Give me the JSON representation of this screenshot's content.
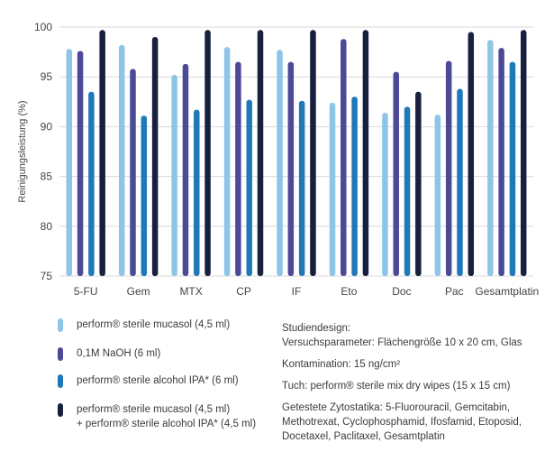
{
  "chart_data": {
    "type": "bar",
    "title": "",
    "xlabel": "",
    "ylabel": "Reinigungsleistung (%)",
    "ylim": [
      75,
      100
    ],
    "yticks": [
      75,
      80,
      85,
      90,
      95,
      100
    ],
    "grid": true,
    "categories": [
      "5-FU",
      "Gem",
      "MTX",
      "CP",
      "IF",
      "Eto",
      "Doc",
      "Pac",
      "Gesamtplatin"
    ],
    "series": [
      {
        "name": "perform® sterile mucasol (4,5 ml)",
        "color": "#8ec5e6",
        "values": [
          97.8,
          98.2,
          95.2,
          98.0,
          97.7,
          92.4,
          91.4,
          91.2,
          98.7
        ]
      },
      {
        "name": "0,1M NaOH (6 ml)",
        "color": "#4c4a97",
        "values": [
          97.6,
          95.8,
          96.3,
          96.5,
          96.5,
          98.8,
          95.5,
          96.6,
          97.9
        ]
      },
      {
        "name": "perform® sterile alcohol IPA* (6 ml)",
        "color": "#1f79b8",
        "values": [
          93.5,
          91.1,
          91.7,
          92.7,
          92.6,
          93.0,
          92.0,
          93.8,
          96.5
        ]
      },
      {
        "name": "perform® sterile mucasol (4,5 ml) + perform® sterile alcohol IPA* (4,5 ml)",
        "color": "#17203f",
        "values": [
          99.7,
          99.0,
          99.7,
          99.7,
          99.7,
          99.7,
          93.5,
          99.5,
          99.7
        ]
      }
    ]
  },
  "legend": {
    "items": [
      {
        "lines": [
          "perform® sterile mucasol (4,5 ml)"
        ],
        "color": "#8ec5e6"
      },
      {
        "lines": [
          "0,1M NaOH (6 ml)"
        ],
        "color": "#4c4a97"
      },
      {
        "lines": [
          "perform® sterile alcohol IPA* (6 ml)"
        ],
        "color": "#1f79b8"
      },
      {
        "lines": [
          "perform® sterile mucasol (4,5 ml)",
          "+ perform® sterile alcohol IPA* (4,5 ml)"
        ],
        "color": "#17203f"
      }
    ]
  },
  "study": {
    "heading": "Studiendesign:",
    "params": "Versuchsparameter: Flächengröße 10 x 20 cm, Glas",
    "contamination": "Kontamination: 15 ng/cm²",
    "wipe": "Tuch: perform® sterile mix dry wipes (15 x 15 cm)",
    "tested_lines": [
      "Getestete Zytostatika: 5-Fluorouracil, Gemcitabin,",
      "Methotrexat, Cyclophosphamid, Ifosfamid, Etoposid,",
      "Docetaxel, Paclitaxel, Gesamtplatin"
    ]
  }
}
